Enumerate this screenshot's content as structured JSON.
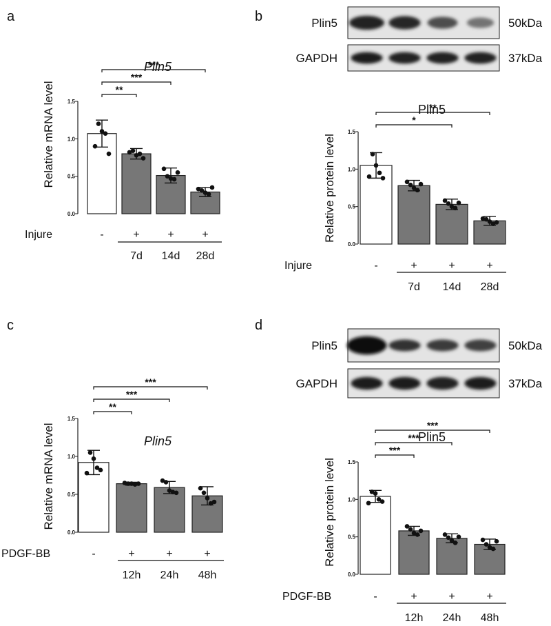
{
  "chart_data": [
    {
      "type": "bar",
      "panel_label": "a",
      "title": "Plin5",
      "ylabel": "Relative mRNA level",
      "ylim": [
        0,
        1.5
      ],
      "yticks": [
        "0.0",
        "0.5",
        "1.0",
        "1.5"
      ],
      "row_label": "Injure",
      "signs": [
        "-",
        "+",
        "+",
        "+"
      ],
      "categories": [
        "",
        "7d",
        "14d",
        "28d"
      ],
      "values": [
        1.07,
        0.8,
        0.51,
        0.29
      ],
      "errors": [
        0.18,
        0.07,
        0.1,
        0.06
      ],
      "points": [
        [
          0.9,
          1.2,
          1.1,
          1.07,
          0.8
        ],
        [
          0.82,
          0.84,
          0.78,
          0.8,
          0.74
        ],
        [
          0.6,
          0.5,
          0.47,
          0.46,
          0.55
        ],
        [
          0.33,
          0.31,
          0.28,
          0.26,
          0.35
        ]
      ],
      "bar_colors": [
        "#ffffff",
        "#777777",
        "#777777",
        "#777777"
      ],
      "significance": [
        {
          "from": 0,
          "to": 1,
          "label": "**"
        },
        {
          "from": 0,
          "to": 2,
          "label": "***"
        },
        {
          "from": 0,
          "to": 3,
          "label": "***"
        }
      ]
    },
    {
      "type": "bar",
      "panel_label": "b",
      "title": "Plin5",
      "ylabel": "Relative protein level",
      "ylim": [
        0,
        1.5
      ],
      "yticks": [
        "0.0",
        "0.5",
        "1.0",
        "1.5"
      ],
      "row_label": "Injure",
      "signs": [
        "-",
        "+",
        "+",
        "+"
      ],
      "categories": [
        "",
        "7d",
        "14d",
        "28d"
      ],
      "values": [
        1.05,
        0.78,
        0.53,
        0.31
      ],
      "errors": [
        0.17,
        0.07,
        0.07,
        0.06
      ],
      "points": [
        [
          0.9,
          1.2,
          1.05,
          0.95,
          0.88
        ],
        [
          0.83,
          0.79,
          0.75,
          0.72,
          0.8
        ],
        [
          0.58,
          0.54,
          0.5,
          0.48,
          0.55
        ],
        [
          0.34,
          0.33,
          0.3,
          0.27,
          0.29
        ]
      ],
      "bar_colors": [
        "#ffffff",
        "#777777",
        "#777777",
        "#777777"
      ],
      "significance": [
        {
          "from": 0,
          "to": 2,
          "label": "*"
        },
        {
          "from": 0,
          "to": 3,
          "label": "**"
        }
      ],
      "blot": {
        "bands": [
          {
            "label": "Plin5",
            "size": "50kDa"
          },
          {
            "label": "GAPDH",
            "size": "37kDa"
          }
        ]
      }
    },
    {
      "type": "bar",
      "panel_label": "c",
      "title": "Plin5",
      "ylabel": "Relative mRNA level",
      "ylim": [
        0,
        1.5
      ],
      "yticks": [
        "0.0",
        "0.5",
        "1.0",
        "1.5"
      ],
      "row_label": "PDGF-BB",
      "signs": [
        "-",
        "+",
        "+",
        "+"
      ],
      "categories": [
        "",
        "12h",
        "24h",
        "48h"
      ],
      "values": [
        0.92,
        0.64,
        0.59,
        0.48
      ],
      "errors": [
        0.16,
        0.02,
        0.08,
        0.12
      ],
      "points": [
        [
          0.78,
          1.05,
          0.97,
          0.85,
          0.82
        ],
        [
          0.65,
          0.64,
          0.64,
          0.63,
          0.64
        ],
        [
          0.68,
          0.66,
          0.55,
          0.53,
          0.52
        ],
        [
          0.58,
          0.52,
          0.45,
          0.38,
          0.4
        ]
      ],
      "bar_colors": [
        "#ffffff",
        "#777777",
        "#777777",
        "#777777"
      ],
      "significance": [
        {
          "from": 0,
          "to": 1,
          "label": "**"
        },
        {
          "from": 0,
          "to": 2,
          "label": "***"
        },
        {
          "from": 0,
          "to": 3,
          "label": "***"
        }
      ]
    },
    {
      "type": "bar",
      "panel_label": "d",
      "title": "Plin5",
      "ylabel": "Relative protein level",
      "ylim": [
        0,
        1.5
      ],
      "yticks": [
        "0.0",
        "0.5",
        "1.0",
        "1.5"
      ],
      "row_label": "PDGF-BB",
      "signs": [
        "-",
        "+",
        "+",
        "+"
      ],
      "categories": [
        "",
        "12h",
        "24h",
        "48h"
      ],
      "values": [
        1.04,
        0.58,
        0.48,
        0.4
      ],
      "errors": [
        0.08,
        0.06,
        0.06,
        0.07
      ],
      "points": [
        [
          0.95,
          1.1,
          1.08,
          1.0,
          0.97
        ],
        [
          0.64,
          0.6,
          0.55,
          0.53,
          0.58
        ],
        [
          0.53,
          0.49,
          0.45,
          0.42,
          0.5
        ],
        [
          0.46,
          0.4,
          0.36,
          0.34,
          0.44
        ]
      ],
      "bar_colors": [
        "#ffffff",
        "#777777",
        "#777777",
        "#777777"
      ],
      "significance": [
        {
          "from": 0,
          "to": 1,
          "label": "***"
        },
        {
          "from": 0,
          "to": 2,
          "label": "***"
        },
        {
          "from": 0,
          "to": 3,
          "label": "***"
        }
      ],
      "blot": {
        "bands": [
          {
            "label": "Plin5",
            "size": "50kDa"
          },
          {
            "label": "GAPDH",
            "size": "37kDa"
          }
        ]
      }
    }
  ]
}
